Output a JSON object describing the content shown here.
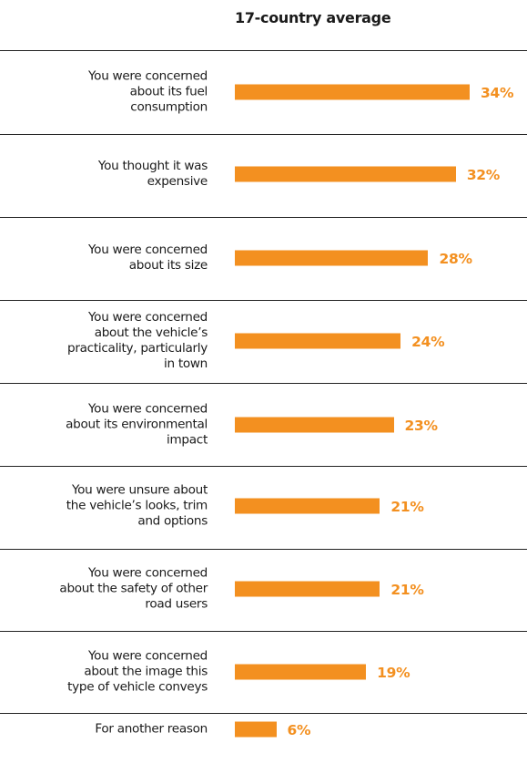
{
  "chart_data": {
    "type": "bar",
    "orientation": "horizontal",
    "title": "17-country average",
    "xlabel": "",
    "ylabel": "",
    "xlim": [
      0,
      34
    ],
    "grid": false,
    "legend": "none",
    "bar_color": "#f39020",
    "categories": [
      "You were concerned about its fuel consumption",
      "You thought it was expensive",
      "You were concerned about its size",
      "You were concerned about the vehicle’s practicality, particularly in town",
      "You were concerned about its environmental impact",
      "You were unsure about the vehicle’s looks, trim and options",
      "You were concerned about the safety of other road users",
      "You were concerned about the image this type of vehicle conveys",
      "For another reason"
    ],
    "values": [
      34,
      32,
      28,
      24,
      23,
      21,
      21,
      19,
      6
    ],
    "value_labels": [
      "34%",
      "32%",
      "28%",
      "24%",
      "23%",
      "21%",
      "21%",
      "19%",
      "6%"
    ]
  }
}
